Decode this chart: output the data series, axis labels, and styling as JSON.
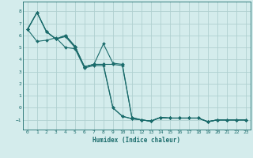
{
  "xlabel": "Humidex (Indice chaleur)",
  "background_color": "#d4ecec",
  "grid_color": "#b0d0d0",
  "line_color": "#1a6b6b",
  "xlim": [
    -0.5,
    23.5
  ],
  "ylim": [
    -1.8,
    8.8
  ],
  "yticks": [
    -1,
    0,
    1,
    2,
    3,
    4,
    5,
    6,
    7,
    8
  ],
  "xticks": [
    0,
    1,
    2,
    3,
    4,
    5,
    6,
    7,
    8,
    9,
    10,
    11,
    12,
    13,
    14,
    15,
    16,
    17,
    18,
    19,
    20,
    21,
    22,
    23
  ],
  "series": [
    {
      "x": [
        0,
        1,
        2,
        3,
        4,
        5,
        6,
        7,
        8,
        9,
        10,
        11,
        12,
        13,
        14,
        15,
        16,
        17,
        18,
        19,
        20,
        21,
        22,
        23
      ],
      "y": [
        6.5,
        7.9,
        6.3,
        5.7,
        5.9,
        5.0,
        3.4,
        3.6,
        3.6,
        0.0,
        -0.7,
        -0.9,
        -1.0,
        -1.1,
        -0.8,
        -0.85,
        -0.85,
        -0.85,
        -0.85,
        -1.15,
        -1.0,
        -1.0,
        -1.0,
        -1.0
      ]
    },
    {
      "x": [
        0,
        1,
        2,
        3,
        4,
        5,
        6,
        7,
        8,
        9,
        10,
        11,
        12,
        13,
        14,
        15,
        16,
        17,
        18,
        19,
        20,
        21,
        22,
        23
      ],
      "y": [
        6.5,
        7.9,
        6.3,
        5.7,
        6.0,
        5.1,
        3.4,
        3.6,
        5.3,
        3.7,
        3.6,
        -0.8,
        -1.0,
        -1.1,
        -0.8,
        -0.85,
        -0.85,
        -0.85,
        -0.85,
        -1.15,
        -1.0,
        -1.0,
        -1.0,
        -1.0
      ]
    },
    {
      "x": [
        0,
        1,
        2,
        3,
        4,
        5,
        6,
        7,
        8,
        9,
        10,
        11,
        12,
        13,
        14,
        15,
        16,
        17,
        18,
        19,
        20,
        21,
        22,
        23
      ],
      "y": [
        6.5,
        7.9,
        6.3,
        5.7,
        6.0,
        5.1,
        3.4,
        3.6,
        3.6,
        3.6,
        3.5,
        -0.8,
        -1.0,
        -1.1,
        -0.8,
        -0.85,
        -0.85,
        -0.85,
        -0.85,
        -1.15,
        -1.0,
        -1.0,
        -1.0,
        -1.0
      ]
    },
    {
      "x": [
        0,
        1,
        2,
        3,
        4,
        5,
        6,
        7,
        8,
        9,
        10,
        11,
        12,
        13,
        14,
        15,
        16,
        17,
        18,
        19,
        20,
        21,
        22,
        23
      ],
      "y": [
        6.5,
        5.5,
        5.6,
        5.8,
        5.0,
        4.9,
        3.3,
        3.5,
        3.5,
        0.0,
        -0.7,
        -0.9,
        -1.0,
        -1.1,
        -0.8,
        -0.85,
        -0.85,
        -0.85,
        -0.85,
        -1.15,
        -1.0,
        -1.0,
        -1.0,
        -1.0
      ]
    }
  ]
}
